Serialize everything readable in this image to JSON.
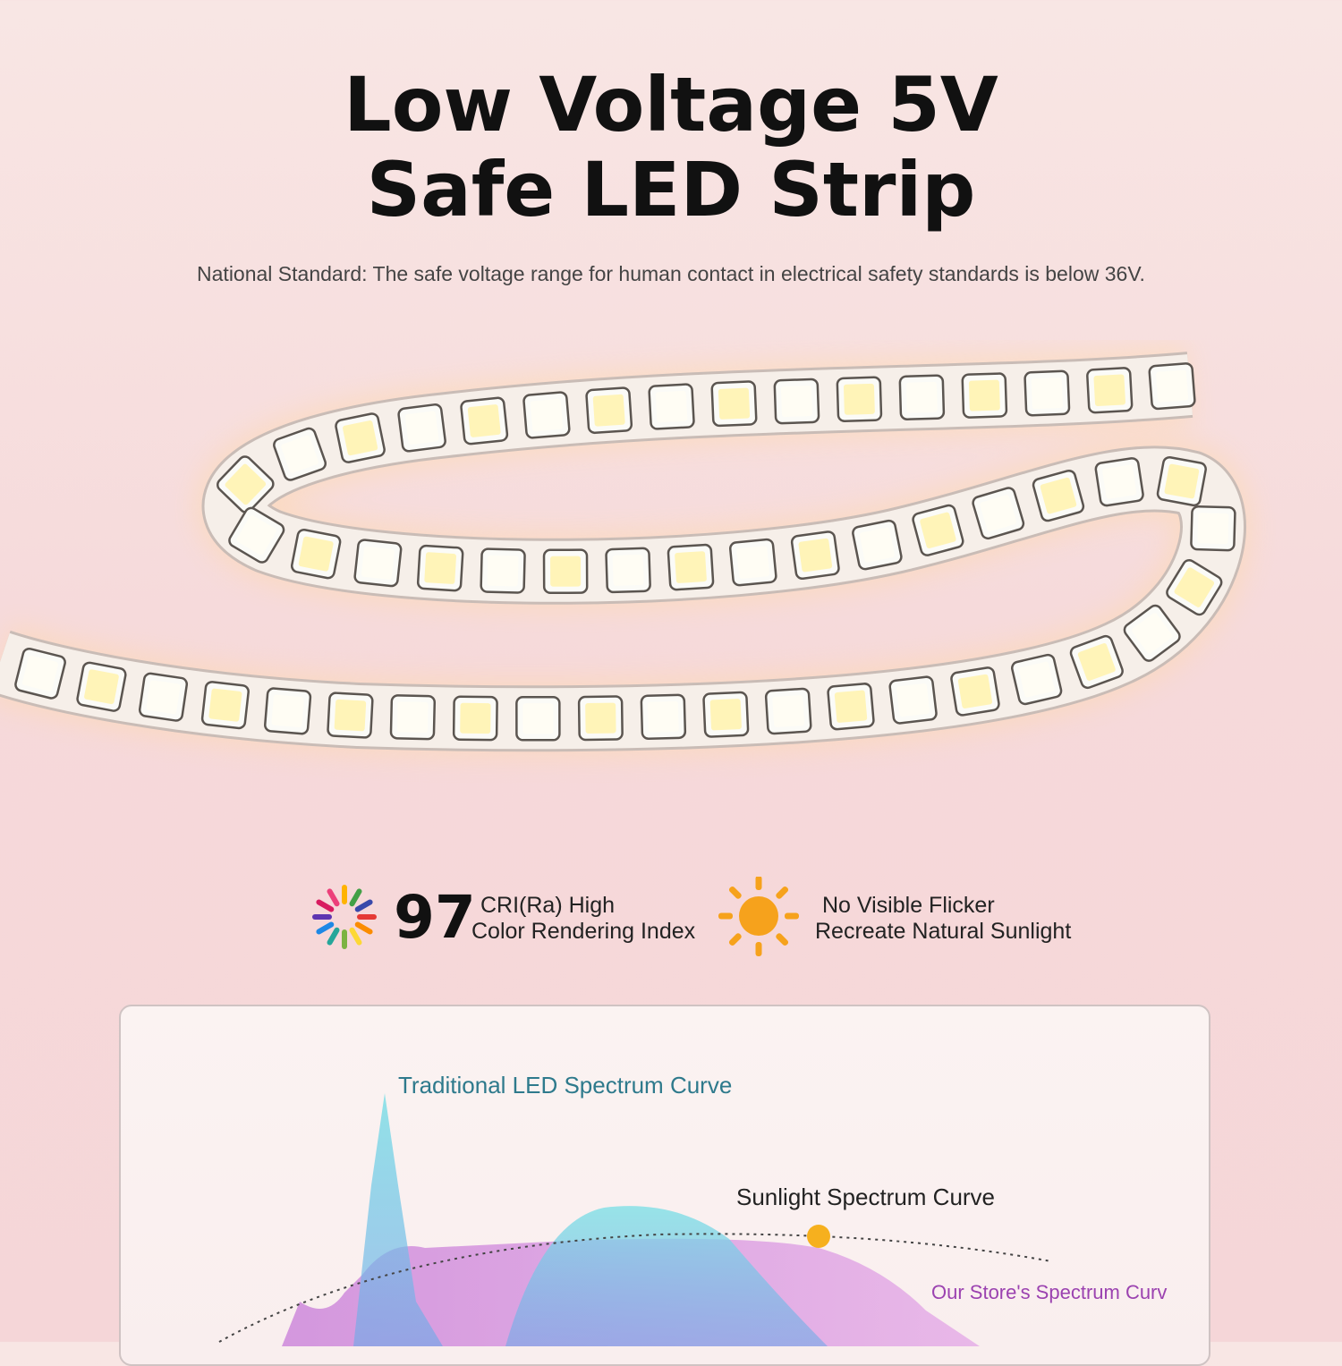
{
  "header": {
    "title_line1": "Low Voltage 5V",
    "title_line2": "Safe LED Strip",
    "subtitle": "National Standard: The safe voltage range for human contact in electrical safety standards is below 36V."
  },
  "features": [
    {
      "number": 97,
      "line1": "CRI(Ra) High",
      "line2": "Color Rendering Index"
    },
    {
      "line1": "No Visible Flicker",
      "line2": "Recreate Natural Sunlight"
    }
  ],
  "spectrum": {
    "traditional": "Traditional LED Spectrum Curve",
    "sunlight": "Sunlight Spectrum Curve",
    "ours": "Our Store's Spectrum Curv"
  }
}
